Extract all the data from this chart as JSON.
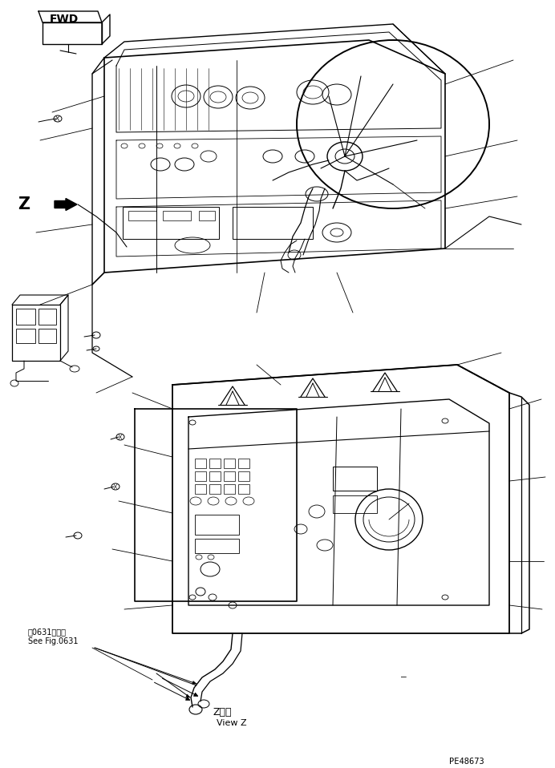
{
  "fig_width": 6.92,
  "fig_height": 9.58,
  "dpi": 100,
  "bg_color": "#ffffff",
  "lc": "#000000",
  "lw": 0.7,
  "part_number": "PE48673",
  "fwd_label": "FWD",
  "z_label": "Z",
  "view_z_jp": "Z　視",
  "view_z_en": "View Z",
  "see_fig_jp": "第0631図参照",
  "see_fig_en": "See Fig.0631"
}
